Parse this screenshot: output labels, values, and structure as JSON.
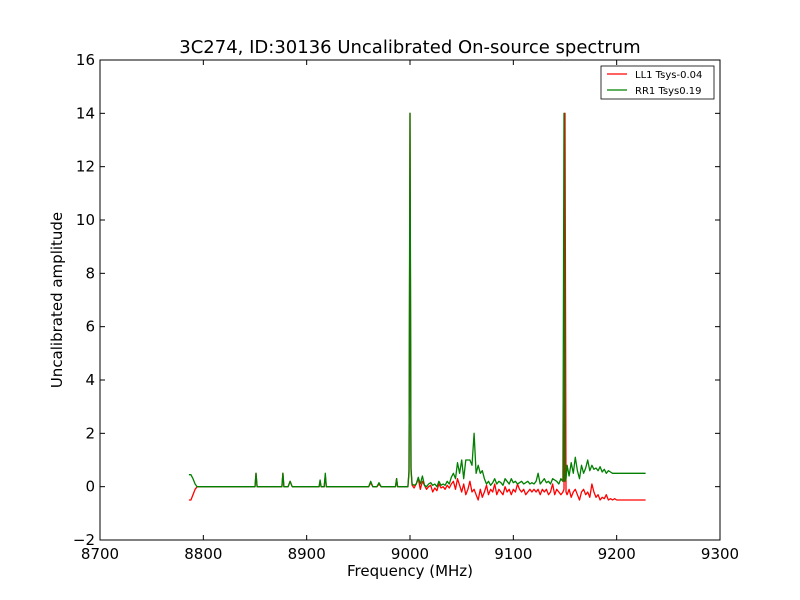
{
  "chart_data": {
    "type": "line",
    "title": "3C274, ID:30136 Uncalibrated On-source spectrum",
    "xlabel": "Frequency (MHz)",
    "ylabel": "Uncalibrated amplitude",
    "xlim": [
      8700,
      9300
    ],
    "ylim": [
      -2,
      16
    ],
    "xticks": [
      "8700",
      "8800",
      "8900",
      "9000",
      "9100",
      "9200",
      "9300"
    ],
    "yticks": [
      "−2",
      "0",
      "2",
      "4",
      "6",
      "8",
      "10",
      "12",
      "14",
      "16"
    ],
    "grid": false,
    "legend_position": "top-right",
    "series": [
      {
        "name": "LL1 Tsys-0.04",
        "color": "#ff0000",
        "x": [
          8786,
          8788,
          8790,
          8792,
          8794,
          8796,
          8850,
          8851,
          8852,
          8876,
          8877,
          8878,
          8882,
          8884,
          8886,
          8912,
          8913,
          8914,
          8917,
          8918,
          8919,
          8960,
          8962,
          8964,
          8968,
          8970,
          8972,
          8986,
          8987,
          8988,
          8998,
          8999,
          9000,
          9001,
          9002,
          9004,
          9006,
          9008,
          9010,
          9012,
          9014,
          9016,
          9018,
          9020,
          9022,
          9024,
          9026,
          9028,
          9030,
          9032,
          9034,
          9036,
          9038,
          9040,
          9042,
          9044,
          9046,
          9048,
          9050,
          9052,
          9054,
          9056,
          9058,
          9060,
          9062,
          9064,
          9066,
          9068,
          9070,
          9072,
          9074,
          9076,
          9078,
          9080,
          9082,
          9084,
          9086,
          9088,
          9090,
          9092,
          9094,
          9096,
          9098,
          9100,
          9102,
          9104,
          9106,
          9108,
          9110,
          9112,
          9114,
          9116,
          9118,
          9120,
          9122,
          9124,
          9126,
          9128,
          9130,
          9132,
          9134,
          9136,
          9138,
          9140,
          9142,
          9144,
          9146,
          9148,
          9149,
          9150,
          9151,
          9152,
          9154,
          9156,
          9158,
          9160,
          9162,
          9164,
          9166,
          9168,
          9170,
          9172,
          9174,
          9176,
          9178,
          9180,
          9182,
          9184,
          9186,
          9188,
          9190,
          9192,
          9194,
          9196,
          9198,
          9200,
          9205,
          9210,
          9215,
          9220,
          9228
        ],
        "y": [
          -0.5,
          -0.5,
          -0.3,
          -0.1,
          0,
          0,
          0,
          0.5,
          0,
          0,
          0.5,
          0,
          0,
          0.2,
          0,
          0,
          0.2,
          0,
          0,
          0.4,
          0,
          0,
          0.15,
          0,
          0,
          0.1,
          0,
          0,
          0.3,
          0,
          0,
          0.5,
          14,
          0.6,
          0.05,
          -0.05,
          0.1,
          0.3,
          -0.1,
          0.2,
          0.05,
          -0.1,
          0,
          0.05,
          -0.2,
          -0.05,
          -0.15,
          0.1,
          -0.05,
          0,
          -0.1,
          0.05,
          -0.05,
          0.1,
          0.2,
          -0.1,
          0.3,
          0.05,
          -0.2,
          0.1,
          -0.3,
          -0.1,
          0.2,
          -0.2,
          -0.1,
          -0.3,
          -0.5,
          -0.1,
          -0.4,
          -0.2,
          0.05,
          -0.3,
          -0.1,
          -0.2,
          0.1,
          -0.3,
          -0.1,
          -0.2,
          -0.3,
          0,
          -0.2,
          -0.1,
          -0.3,
          -0.1,
          -0.2,
          0.1,
          -0.1,
          -0.2,
          -0.1,
          -0.3,
          -0.2,
          -0.1,
          -0.2,
          -0.1,
          -0.2,
          -0.1,
          -0.3,
          -0.1,
          -0.2,
          -0.1,
          -0.3,
          -0.2,
          0.1,
          -0.3,
          -0.1,
          -0.2,
          -0.3,
          -0.2,
          -0.1,
          14,
          -0.2,
          -0.3,
          -0.1,
          -0.4,
          -0.2,
          -0.1,
          -0.3,
          -0.5,
          -0.2,
          -0.1,
          -0.3,
          -0.2,
          -0.4,
          0.1,
          -0.2,
          -0.4,
          -0.3,
          -0.5,
          -0.4,
          -0.45,
          -0.3,
          -0.5,
          -0.45,
          -0.5,
          -0.45,
          -0.5,
          -0.5,
          -0.5,
          -0.5,
          -0.5,
          -0.5
        ]
      },
      {
        "name": "RR1 Tsys0.19",
        "color": "#008000",
        "x": [
          8786,
          8788,
          8790,
          8792,
          8794,
          8796,
          8850,
          8851,
          8852,
          8876,
          8877,
          8878,
          8882,
          8884,
          8886,
          8912,
          8913,
          8914,
          8917,
          8918,
          8919,
          8960,
          8962,
          8964,
          8968,
          8970,
          8972,
          8986,
          8987,
          8988,
          8998,
          8999,
          9000,
          9001,
          9002,
          9004,
          9006,
          9008,
          9010,
          9012,
          9014,
          9016,
          9018,
          9020,
          9022,
          9024,
          9026,
          9028,
          9030,
          9032,
          9034,
          9036,
          9038,
          9040,
          9042,
          9044,
          9046,
          9048,
          9050,
          9052,
          9054,
          9056,
          9058,
          9060,
          9062,
          9064,
          9066,
          9068,
          9070,
          9072,
          9074,
          9076,
          9078,
          9080,
          9082,
          9084,
          9086,
          9088,
          9090,
          9092,
          9094,
          9096,
          9098,
          9100,
          9102,
          9104,
          9106,
          9108,
          9110,
          9112,
          9114,
          9116,
          9118,
          9120,
          9122,
          9124,
          9126,
          9128,
          9130,
          9132,
          9134,
          9136,
          9138,
          9140,
          9142,
          9144,
          9146,
          9148,
          9149,
          9150,
          9151,
          9152,
          9154,
          9156,
          9158,
          9160,
          9162,
          9164,
          9166,
          9168,
          9170,
          9172,
          9174,
          9176,
          9178,
          9180,
          9182,
          9184,
          9186,
          9188,
          9190,
          9192,
          9194,
          9196,
          9198,
          9200,
          9205,
          9210,
          9215,
          9220,
          9228
        ],
        "y": [
          0.45,
          0.45,
          0.3,
          0.1,
          0,
          0,
          0,
          0.5,
          0,
          0,
          0.5,
          0,
          0,
          0.2,
          0,
          0,
          0.25,
          0,
          0,
          0.5,
          0,
          0,
          0.2,
          0,
          0,
          0.15,
          0,
          0,
          0.3,
          0,
          0,
          0.6,
          14,
          0.7,
          0.1,
          0.05,
          0.1,
          0.35,
          0.1,
          0.4,
          0.05,
          0,
          0.1,
          0.15,
          0.05,
          0.1,
          0,
          0.2,
          0.05,
          0.1,
          0.05,
          0.2,
          0.1,
          0.35,
          0.5,
          0.3,
          0.9,
          0.5,
          1,
          0.3,
          1,
          1,
          1,
          0.8,
          2,
          0.5,
          0.8,
          0.5,
          0.6,
          0.3,
          0.1,
          0.2,
          0.05,
          0.15,
          0.3,
          0.1,
          0.2,
          0.15,
          0.05,
          0.3,
          0.2,
          0.1,
          0.3,
          0.15,
          0.2,
          0.1,
          0.15,
          0.2,
          0.1,
          0.15,
          0.2,
          0.1,
          0.15,
          0.1,
          0.2,
          0.5,
          0.1,
          0.2,
          0.3,
          0.15,
          0.2,
          0.1,
          0.3,
          0.25,
          0.2,
          0.1,
          0.3,
          0.2,
          14,
          0.2,
          0.3,
          0.8,
          0.4,
          0.9,
          0.5,
          1.1,
          0.6,
          0.3,
          0.8,
          0.5,
          0.7,
          1.0,
          0.6,
          0.8,
          0.65,
          0.7,
          0.6,
          0.75,
          0.55,
          0.65,
          0.5,
          0.6,
          0.55,
          0.5,
          0.5,
          0.5,
          0.5,
          0.5,
          0.5,
          0.5,
          0.5
        ]
      }
    ]
  }
}
